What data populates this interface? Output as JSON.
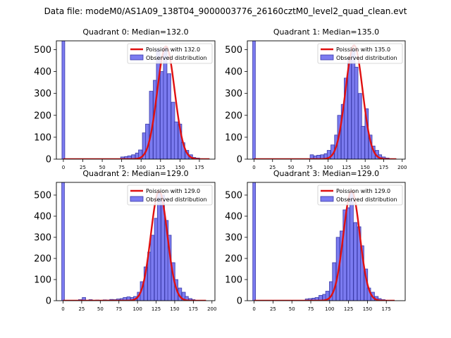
{
  "figure": {
    "suptitle": "Data file: modeM0/AS1A09_138T04_9000003776_26160cztM0_level2_quad_clean.evt"
  },
  "colors": {
    "bar_fill": "#7b7bf0",
    "bar_edge": "#3a3aa8",
    "curve": "#e01010"
  },
  "chart_data": [
    {
      "type": "bar",
      "title": "Quadrant 0: Median=132.0",
      "xlim": [
        -9,
        195
      ],
      "ylim": [
        0,
        540
      ],
      "xticks": [
        0,
        25,
        50,
        75,
        100,
        125,
        150,
        175
      ],
      "yticks": [
        0,
        100,
        200,
        300,
        400,
        500
      ],
      "legend": [
        "Poission with 132.0",
        "Observed distribution"
      ],
      "bin_width": 4.6,
      "zero_bin_value": 540,
      "bars_x": [
        76,
        81,
        85,
        90,
        95,
        99,
        104,
        108,
        113,
        118,
        122,
        127,
        131,
        136,
        141,
        145,
        150,
        154,
        159,
        164,
        168,
        173,
        177,
        182
      ],
      "bars_y": [
        10,
        12,
        15,
        20,
        28,
        42,
        120,
        160,
        310,
        360,
        500,
        400,
        510,
        390,
        260,
        170,
        160,
        75,
        40,
        20,
        8,
        5,
        2,
        1
      ],
      "curve": {
        "mean": 132.0,
        "peak": 515,
        "sigma": 11.2,
        "x_start": 0,
        "x_end": 188
      }
    },
    {
      "type": "bar",
      "title": "Quadrant 1: Median=135.0",
      "xlim": [
        -9,
        204
      ],
      "ylim": [
        0,
        540
      ],
      "xticks": [
        0,
        25,
        50,
        75,
        100,
        125,
        150,
        175,
        200
      ],
      "yticks": [
        0,
        100,
        200,
        300,
        400,
        500
      ],
      "legend": [
        "Poission with 135.0",
        "Observed distribution"
      ],
      "bin_width": 4.6,
      "zero_bin_value": 540,
      "bars_x": [
        78,
        83,
        87,
        92,
        97,
        101,
        106,
        111,
        115,
        120,
        124,
        129,
        134,
        138,
        143,
        147,
        152,
        157,
        161,
        166,
        170,
        175,
        180,
        184
      ],
      "bars_y": [
        20,
        15,
        18,
        20,
        25,
        40,
        65,
        110,
        200,
        250,
        370,
        460,
        500,
        420,
        300,
        150,
        230,
        110,
        60,
        40,
        20,
        10,
        5,
        2
      ],
      "curve": {
        "mean": 135.0,
        "peak": 520,
        "sigma": 11.5,
        "x_start": 0,
        "x_end": 192
      }
    },
    {
      "type": "bar",
      "title": "Quadrant 2: Median=129.0",
      "xlim": [
        -9,
        204
      ],
      "ylim": [
        0,
        560
      ],
      "xticks": [
        0,
        25,
        50,
        75,
        100,
        125,
        150,
        175,
        200
      ],
      "yticks": [
        0,
        100,
        200,
        300,
        400,
        500
      ],
      "legend": [
        "Poission with 129.0",
        "Observed distribution"
      ],
      "bin_width": 4.6,
      "zero_bin_value": 560,
      "bars_x": [
        23,
        28,
        37,
        46,
        56,
        60,
        65,
        70,
        74,
        79,
        83,
        88,
        93,
        97,
        102,
        106,
        111,
        116,
        120,
        125,
        129,
        134,
        139,
        143,
        148,
        152,
        157,
        162,
        166,
        171,
        175,
        180
      ],
      "bars_y": [
        5,
        15,
        5,
        3,
        4,
        3,
        6,
        5,
        8,
        10,
        15,
        18,
        15,
        20,
        40,
        90,
        160,
        230,
        310,
        390,
        520,
        500,
        380,
        310,
        180,
        100,
        60,
        40,
        20,
        10,
        5,
        2
      ],
      "curve": {
        "mean": 129.0,
        "peak": 520,
        "sigma": 11.0,
        "x_start": 0,
        "x_end": 192
      }
    },
    {
      "type": "bar",
      "title": "Quadrant 3: Median=129.0",
      "xlim": [
        -9,
        200
      ],
      "ylim": [
        0,
        560
      ],
      "xticks": [
        0,
        25,
        50,
        75,
        100,
        125,
        150,
        175
      ],
      "yticks": [
        0,
        100,
        200,
        300,
        400,
        500
      ],
      "legend": [
        "Poission with 129.0",
        "Observed distribution"
      ],
      "bin_width": 4.6,
      "zero_bin_value": 560,
      "bars_x": [
        70,
        74,
        79,
        83,
        88,
        93,
        97,
        102,
        106,
        111,
        116,
        120,
        125,
        129,
        134,
        139,
        143,
        148,
        152,
        157,
        162,
        166,
        171,
        175
      ],
      "bars_y": [
        8,
        10,
        12,
        15,
        25,
        30,
        45,
        90,
        180,
        300,
        330,
        430,
        440,
        520,
        370,
        350,
        260,
        150,
        60,
        40,
        20,
        10,
        5,
        2
      ],
      "curve": {
        "mean": 129.0,
        "peak": 520,
        "sigma": 10.8,
        "x_start": 0,
        "x_end": 186
      }
    }
  ]
}
